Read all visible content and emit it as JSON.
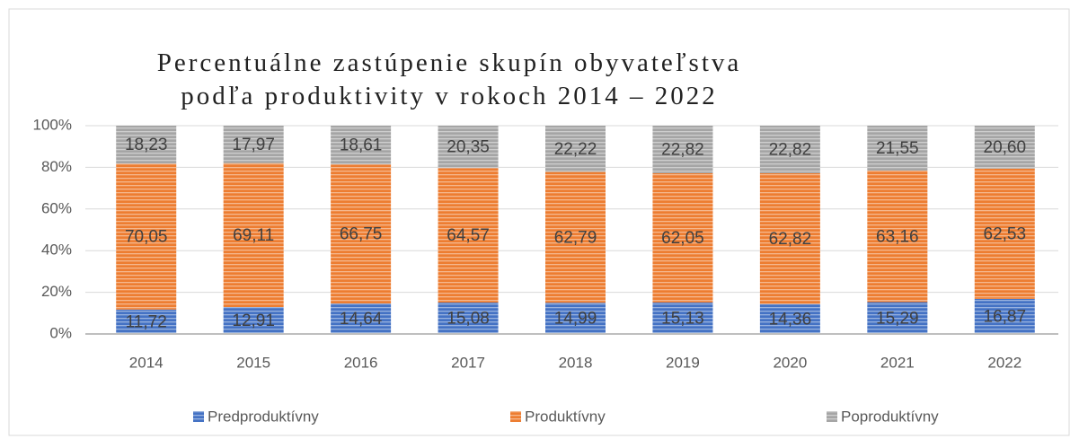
{
  "chart_data": {
    "type": "stacked_bar",
    "title": "Percentuálne zastúpenie skupín obyvateľstva podľa produktivity v rokoch 2014 – 2022",
    "categories": [
      "2014",
      "2015",
      "2016",
      "2017",
      "2018",
      "2019",
      "2020",
      "2021",
      "2022"
    ],
    "series": [
      {
        "name": "Predproduktívny",
        "color": "#4472c4",
        "values": [
          11.72,
          12.91,
          14.64,
          15.08,
          14.99,
          15.13,
          14.36,
          15.29,
          16.87
        ],
        "value_labels": [
          "11,72",
          "12,91",
          "14,64",
          "15,08",
          "14,99",
          "15,13",
          "14,36",
          "15,29",
          "16,87"
        ]
      },
      {
        "name": "Produktívny",
        "color": "#ed7d31",
        "values": [
          70.05,
          69.11,
          66.75,
          64.57,
          62.79,
          62.05,
          62.82,
          63.16,
          62.53
        ],
        "value_labels": [
          "70,05",
          "69,11",
          "66,75",
          "64,57",
          "62,79",
          "62,05",
          "62,82",
          "63,16",
          "62,53"
        ]
      },
      {
        "name": "Poproduktívny",
        "color": "#a5a5a5",
        "values": [
          18.23,
          17.97,
          18.61,
          20.35,
          22.22,
          22.82,
          22.82,
          21.55,
          20.6
        ],
        "value_labels": [
          "18,23",
          "17,97",
          "18,61",
          "20,35",
          "22,22",
          "22,82",
          "22,82",
          "21,55",
          "20,60"
        ]
      }
    ],
    "ylim": [
      0,
      100
    ],
    "yticks": [
      {
        "value": 0,
        "label": "0%"
      },
      {
        "value": 20,
        "label": "20%"
      },
      {
        "value": 40,
        "label": "40%"
      },
      {
        "value": 60,
        "label": "60%"
      },
      {
        "value": 80,
        "label": "80%"
      },
      {
        "value": 100,
        "label": "100%"
      }
    ],
    "grid": true,
    "legend": "bottom"
  }
}
